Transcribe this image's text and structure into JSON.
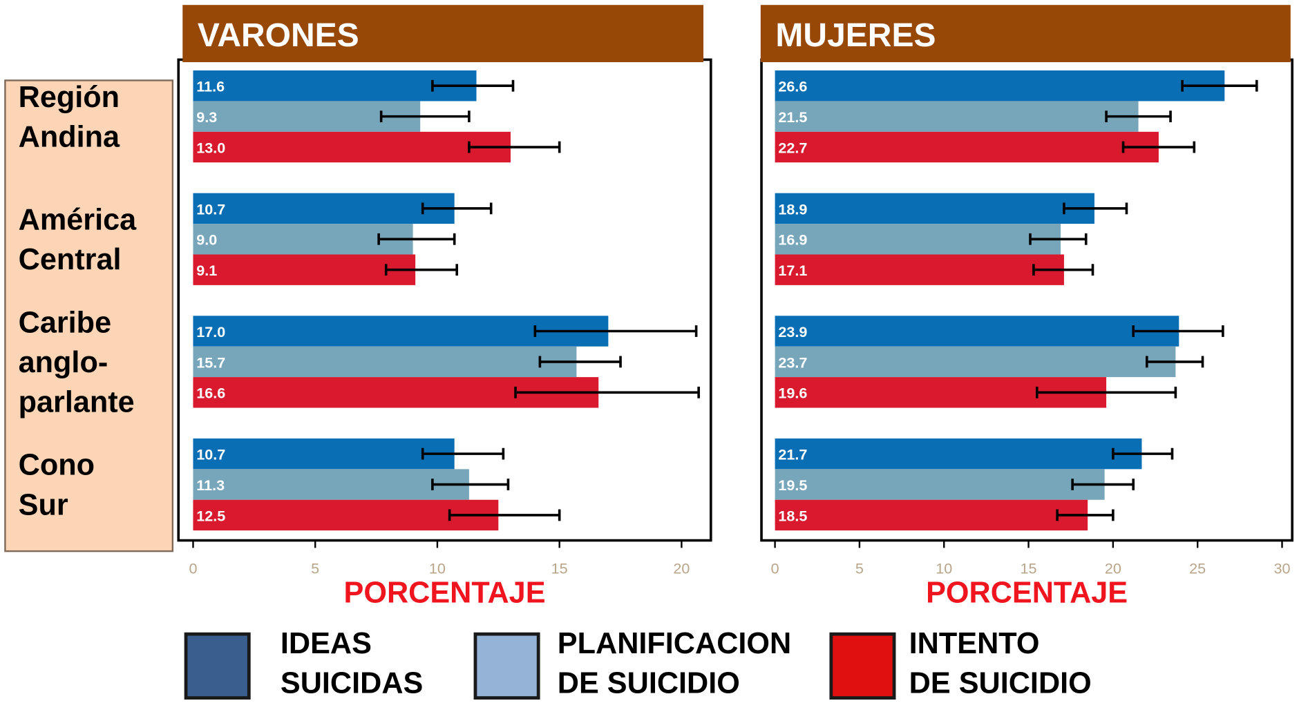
{
  "chart_data": [
    {
      "type": "bar",
      "orientation": "horizontal",
      "title": "VARONES",
      "xlabel": "PORCENTAJE",
      "categories": [
        "Región\nAndina",
        "América\nCentral",
        "Caribe\nanglo-\nparlante",
        "Cono\nSur"
      ],
      "xlim": [
        -0.6,
        21.2
      ],
      "xticks": [
        0,
        5,
        10,
        15,
        20
      ],
      "series": [
        {
          "name": "IDEAS\nSUICIDAS",
          "color": "#0a6eb4",
          "legend_color": "#3a5f8f",
          "values": [
            11.6,
            10.7,
            17,
            10.7
          ],
          "value_labels": [
            "11.6",
            "10.7",
            "17.0",
            "10.7"
          ],
          "errors": [
            [
              9.8,
              13.1
            ],
            [
              9.4,
              12.2
            ],
            [
              14.0,
              20.6
            ],
            [
              9.4,
              12.7
            ]
          ]
        },
        {
          "name": "PLANIFICACION\nDE SUICIDIO",
          "color": "#77a6bb",
          "legend_color": "#95b3d7",
          "values": [
            9.3,
            9,
            15.7,
            11.3
          ],
          "value_labels": [
            "9.3",
            "9.0",
            "15.7",
            "11.3"
          ],
          "errors": [
            [
              7.7,
              11.3
            ],
            [
              7.6,
              10.7
            ],
            [
              14.2,
              17.5
            ],
            [
              9.8,
              12.9
            ]
          ]
        },
        {
          "name": "INTENTO\nDE SUICIDIO",
          "color": "#d91a2e",
          "legend_color": "#e01010",
          "values": [
            13,
            9.1,
            16.6,
            12.5
          ],
          "value_labels": [
            "13.0",
            "9.1",
            "16.6",
            "12.5"
          ],
          "errors": [
            [
              11.3,
              15.0
            ],
            [
              7.9,
              10.8
            ],
            [
              13.2,
              20.7
            ],
            [
              10.5,
              15.0
            ]
          ]
        }
      ]
    },
    {
      "type": "bar",
      "orientation": "horizontal",
      "title": "MUJERES",
      "xlabel": "PORCENTAJE",
      "xlim": [
        -0.8,
        30.6
      ],
      "xticks": [
        0,
        5,
        10,
        15,
        20,
        25,
        30
      ],
      "series": [
        {
          "color": "#0a6eb4",
          "values": [
            26.6,
            18.9,
            23.9,
            21.7
          ],
          "value_labels": [
            "26.6",
            "18.9",
            "23.9",
            "21.7"
          ],
          "errors": [
            [
              24.1,
              28.5
            ],
            [
              17.1,
              20.8
            ],
            [
              21.2,
              26.5
            ],
            [
              20.0,
              23.5
            ]
          ]
        },
        {
          "color": "#77a6bb",
          "values": [
            21.5,
            16.9,
            23.7,
            19.5
          ],
          "value_labels": [
            "21.5",
            "16.9",
            "23.7",
            "19.5"
          ],
          "errors": [
            [
              19.6,
              23.4
            ],
            [
              15.1,
              18.4
            ],
            [
              22.0,
              25.3
            ],
            [
              17.6,
              21.2
            ]
          ]
        },
        {
          "color": "#d91a2e",
          "values": [
            22.7,
            17.1,
            19.6,
            18.5
          ],
          "value_labels": [
            "22.7",
            "17.1",
            "19.6",
            "18.5"
          ],
          "errors": [
            [
              20.6,
              24.8
            ],
            [
              15.3,
              18.8
            ],
            [
              15.5,
              23.7
            ],
            [
              16.7,
              20.0
            ]
          ]
        }
      ]
    }
  ]
}
